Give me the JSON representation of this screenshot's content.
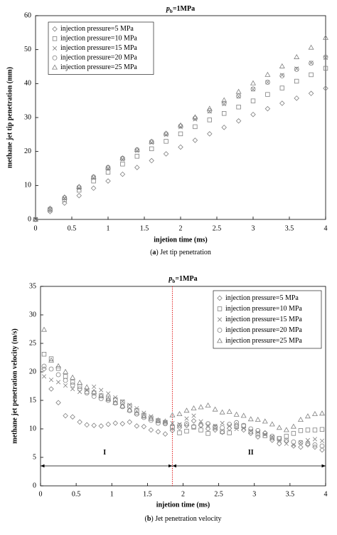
{
  "chart_data": [
    {
      "type": "scatter",
      "title": [
        "p",
        "b",
        "=1MPa"
      ],
      "xlabel": "injetion time (ms)",
      "ylabel": "methane jet tip penetration (mm)",
      "caption": [
        "(",
        "a",
        ") Jet tip penetration"
      ],
      "xlim": [
        0,
        4
      ],
      "ylim": [
        0,
        60
      ],
      "xticks": [
        0,
        0.5,
        1,
        1.5,
        2,
        2.5,
        3,
        3.5,
        4
      ],
      "yticks": [
        0,
        10,
        20,
        30,
        40,
        50,
        60
      ],
      "legend": "upper left",
      "x": [
        0,
        0.2,
        0.4,
        0.6,
        0.8,
        1,
        1.2,
        1.4,
        1.6,
        1.8,
        2,
        2.2,
        2.4,
        2.6,
        2.8,
        3,
        3.2,
        3.4,
        3.6,
        3.8,
        4
      ],
      "series": [
        {
          "name": "injection pressure=5 MPa",
          "marker": "diamond",
          "color": "#808080",
          "values": [
            0,
            2.3,
            4.8,
            7.0,
            9.2,
            11.3,
            13.3,
            15.3,
            17.3,
            19.3,
            21.3,
            23.3,
            25.2,
            27.1,
            29.0,
            30.9,
            32.6,
            34.2,
            35.7,
            37.1,
            38.6
          ]
        },
        {
          "name": "injection pressure=10 MPa",
          "marker": "square",
          "color": "#808080",
          "values": [
            0,
            2.8,
            5.8,
            8.6,
            11.3,
            13.9,
            16.3,
            18.6,
            20.8,
            23.0,
            25.2,
            27.3,
            29.3,
            31.2,
            33.1,
            34.9,
            36.8,
            38.7,
            40.7,
            42.6,
            44.5
          ]
        },
        {
          "name": "injection pressure=15 MPa",
          "marker": "x",
          "color": "#808080",
          "values": [
            0,
            3.0,
            6.2,
            9.2,
            12.2,
            15.0,
            17.7,
            20.2,
            22.6,
            24.9,
            27.2,
            29.5,
            31.8,
            34.0,
            36.2,
            38.3,
            40.4,
            42.5,
            44.4,
            46.1,
            47.6
          ]
        },
        {
          "name": "injection pressure=20 MPa",
          "marker": "circle",
          "color": "#808080",
          "values": [
            0,
            3.1,
            6.4,
            9.5,
            12.5,
            15.3,
            18.0,
            20.5,
            22.9,
            25.2,
            27.5,
            29.8,
            32.0,
            34.2,
            36.3,
            38.4,
            40.4,
            42.3,
            44.2,
            46.0,
            47.8
          ]
        },
        {
          "name": "injection pressure=25 MPa",
          "marker": "triangle",
          "color": "#808080",
          "values": [
            0,
            3.2,
            6.5,
            9.6,
            12.5,
            15.3,
            18.0,
            20.5,
            22.9,
            25.3,
            27.7,
            30.1,
            32.6,
            35.1,
            37.6,
            40.1,
            42.6,
            45.1,
            47.8,
            50.6,
            53.5
          ]
        }
      ]
    },
    {
      "type": "scatter",
      "title": [
        "p",
        "b",
        "=1MPa"
      ],
      "xlabel": "injetion time (ms)",
      "ylabel": "methane jet penetration velocity (m/s)",
      "caption": [
        "(",
        "b",
        ") Jet penetration velocity"
      ],
      "xlim": [
        0,
        4
      ],
      "ylim": [
        0,
        35
      ],
      "xticks": [
        0,
        0.5,
        1,
        1.5,
        2,
        2.5,
        3,
        3.5,
        4
      ],
      "yticks": [
        0,
        5,
        10,
        15,
        20,
        25,
        30,
        35
      ],
      "legend": "upper right",
      "divider_x": 1.85,
      "divider_color": "#e02020",
      "arrow_y": 3.5,
      "annotations": [
        {
          "text": "I",
          "x": 0.9,
          "y": 5.8
        },
        {
          "text": "II",
          "x": 2.95,
          "y": 5.8
        }
      ],
      "x": [
        0.05,
        0.15,
        0.25,
        0.35,
        0.45,
        0.55,
        0.65,
        0.75,
        0.85,
        0.95,
        1.05,
        1.15,
        1.25,
        1.35,
        1.45,
        1.55,
        1.65,
        1.75,
        1.85,
        1.95,
        2.05,
        2.15,
        2.25,
        2.35,
        2.45,
        2.55,
        2.65,
        2.75,
        2.85,
        2.95,
        3.05,
        3.15,
        3.25,
        3.35,
        3.45,
        3.55,
        3.65,
        3.75,
        3.85,
        3.95
      ],
      "series": [
        {
          "name": "injection pressure=5 MPa",
          "marker": "diamond",
          "color": "#808080",
          "values": [
            20.5,
            17,
            14.6,
            12.3,
            12.1,
            11.2,
            10.7,
            10.6,
            10.5,
            10.8,
            11,
            10.9,
            11.2,
            10.5,
            10.4,
            9.8,
            9.5,
            9.1,
            9.7,
            10.2,
            10.6,
            11.4,
            10.6,
            10,
            9.8,
            9.4,
            10.1,
            10.7,
            9.8,
            9.2,
            8.6,
            9.3,
            8,
            7.4,
            7.8,
            7,
            6.8,
            7.2,
            6.8,
            6.3
          ]
        },
        {
          "name": "injection pressure=10 MPa",
          "marker": "square",
          "color": "#808080",
          "values": [
            23.1,
            22.3,
            20.6,
            19.2,
            18.2,
            17.4,
            16.5,
            16.3,
            15.8,
            15.4,
            15.1,
            14.7,
            14,
            13.2,
            12.4,
            11.9,
            11.4,
            11.1,
            10.2,
            9.3,
            9.6,
            10.3,
            9.8,
            9.2,
            10.2,
            9.5,
            9.3,
            10.4,
            10.5,
            9.5,
            9.1,
            8.8,
            8.4,
            8.3,
            8.7,
            9.2,
            9.7,
            9.8,
            9.8,
            9.9
          ]
        },
        {
          "name": "injection pressure=15 MPa",
          "marker": "x",
          "color": "#808080",
          "values": [
            19.2,
            18.6,
            18.2,
            17.6,
            17,
            16.5,
            16.8,
            17.4,
            16.8,
            16.2,
            15.5,
            14.8,
            14.2,
            13.6,
            12.8,
            12.2,
            11.5,
            11.2,
            11,
            10.8,
            11.8,
            12.3,
            11.3,
            10.6,
            10.5,
            11,
            10.5,
            10,
            10.1,
            9.6,
            9.4,
            9,
            8.6,
            8,
            7.4,
            7.2,
            7.6,
            8,
            8.2,
            7.9
          ]
        },
        {
          "name": "injection pressure=20 MPa",
          "marker": "circle",
          "color": "#808080",
          "values": [
            21,
            20.5,
            19.5,
            18.5,
            17.7,
            17,
            16.3,
            15.7,
            15.3,
            15,
            14.5,
            13.9,
            13.2,
            12.6,
            12,
            11.5,
            11,
            10.9,
            10.4,
            10.6,
            10.9,
            10.4,
            10.7,
            10.9,
            10.4,
            10.2,
            10.8,
            11.1,
            10.6,
            10,
            9.7,
            9.2,
            8.7,
            8.3,
            8,
            7.7,
            7.6,
            7.4,
            7.2,
            7
          ]
        },
        {
          "name": "injection pressure=25 MPa",
          "marker": "triangle",
          "color": "#808080",
          "values": [
            27.4,
            22,
            21,
            20,
            19,
            18.1,
            17.3,
            16.5,
            15.8,
            15.2,
            14.6,
            14,
            13.3,
            12.8,
            12.2,
            11.8,
            11.5,
            11.3,
            12.4,
            12.6,
            13.2,
            13.6,
            13.8,
            14.1,
            13.4,
            12.9,
            13,
            12.5,
            12.3,
            11.7,
            11.6,
            11.3,
            10.8,
            10.2,
            9.8,
            10.4,
            11.6,
            12.2,
            12.6,
            12.7
          ]
        }
      ]
    }
  ]
}
